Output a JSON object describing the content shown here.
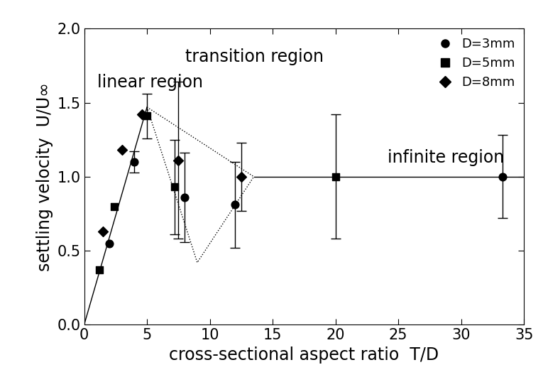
{
  "chart_data": {
    "type": "scatter",
    "x_label": "cross-sectional aspect ratio  T/D",
    "y_label": "settling velocity  U/U∞",
    "xlim": [
      0,
      35
    ],
    "ylim": [
      0,
      2.0
    ],
    "xticks": [
      0,
      5,
      10,
      15,
      20,
      25,
      30,
      35
    ],
    "yticks": [
      {
        "value": 0,
        "label": "0.0"
      },
      {
        "value": 0.5,
        "label": "0.5"
      },
      {
        "value": 1.0,
        "label": "1.0"
      },
      {
        "value": 1.5,
        "label": "1.5"
      },
      {
        "value": 2.0,
        "label": "2.0"
      }
    ],
    "grid": false,
    "legend": "upper right",
    "annotations": [
      "linear region",
      "transition region",
      "infinite region"
    ],
    "series": [
      {
        "name": "D=3mm",
        "type": "scatter",
        "color": "#000000",
        "marker": "circle",
        "x": [
          2,
          4,
          8,
          12,
          33.3
        ],
        "values": [
          0.55,
          1.1,
          0.86,
          0.81,
          1.0
        ],
        "errors": [
          null,
          0.07,
          0.3,
          0.29,
          0.28
        ]
      },
      {
        "name": "D=5mm",
        "type": "scatter",
        "color": "#000000",
        "marker": "square",
        "x": [
          1.2,
          2.4,
          5,
          7.2,
          20
        ],
        "values": [
          0.37,
          0.8,
          1.41,
          0.93,
          1.0
        ],
        "errors": [
          null,
          null,
          0.15,
          0.32,
          0.42
        ]
      },
      {
        "name": "D=8mm",
        "type": "scatter",
        "color": "#000000",
        "marker": "diamond",
        "x": [
          1.5,
          3,
          4.6,
          7.5,
          12.5
        ],
        "values": [
          0.63,
          1.18,
          1.42,
          1.11,
          1.0
        ],
        "errors": [
          null,
          null,
          null,
          0.53,
          0.23
        ]
      },
      {
        "type": "line",
        "color": "#000000",
        "line_style": "solid",
        "x": [
          0,
          5
        ],
        "values": [
          0,
          1.47
        ]
      },
      {
        "type": "line",
        "color": "#000000",
        "line_style": "solid",
        "x": [
          13.5,
          35
        ],
        "values": [
          1.0,
          1.0
        ]
      },
      {
        "type": "line",
        "color": "#000000",
        "line_style": "dotted",
        "x": [
          5,
          13.5
        ],
        "values": [
          1.47,
          1.0
        ]
      },
      {
        "type": "line",
        "color": "#000000",
        "line_style": "dotted",
        "x": [
          5,
          9,
          13.5
        ],
        "values": [
          1.47,
          0.42,
          1.0
        ]
      }
    ]
  }
}
